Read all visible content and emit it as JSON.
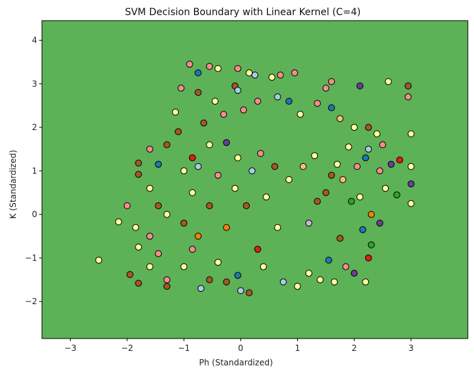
{
  "chart_data": {
    "type": "scatter",
    "title": "SVM Decision Boundary with Linear Kernel (C=4)",
    "xlabel": "Ph (Standardized)",
    "ylabel": "K (Standardized)",
    "xlim": [
      -3.5,
      4.0
    ],
    "ylim": [
      -2.85,
      4.45
    ],
    "xticks": [
      -3,
      -2,
      -1,
      0,
      1,
      2,
      3
    ],
    "yticks": [
      -2,
      -1,
      0,
      1,
      2,
      3,
      4
    ],
    "grid": false,
    "legend": "none",
    "background_region": {
      "label": "predicted class region",
      "color": "#5db156"
    },
    "colors": {
      "light_yellow": "#ffff99",
      "brown": "#a65628",
      "pink": "#f78c8c",
      "light_blue": "#a6cee3",
      "dark_blue": "#1f78b4",
      "orange": "#ff7f00",
      "red": "#e31a1c",
      "purple": "#6a3d9a",
      "lavender": "#cab2d6",
      "light_orange": "#fdbf6f",
      "green": "#33a02c"
    },
    "points": [
      [
        -2.5,
        -1.05,
        "light_yellow"
      ],
      [
        -2.15,
        -0.17,
        "light_yellow"
      ],
      [
        -2.0,
        0.2,
        "pink"
      ],
      [
        -1.95,
        -1.38,
        "brown"
      ],
      [
        -1.85,
        -0.3,
        "light_yellow"
      ],
      [
        -1.8,
        0.92,
        "brown"
      ],
      [
        -1.8,
        1.18,
        "brown"
      ],
      [
        -1.8,
        -1.58,
        "brown"
      ],
      [
        -1.8,
        -0.75,
        "light_yellow"
      ],
      [
        -1.6,
        1.5,
        "pink"
      ],
      [
        -1.6,
        0.6,
        "light_yellow"
      ],
      [
        -1.6,
        -0.5,
        "pink"
      ],
      [
        -1.6,
        -1.2,
        "light_yellow"
      ],
      [
        -1.45,
        1.15,
        "dark_blue"
      ],
      [
        -1.45,
        0.2,
        "brown"
      ],
      [
        -1.45,
        -0.9,
        "pink"
      ],
      [
        -1.3,
        1.6,
        "brown"
      ],
      [
        -1.3,
        0.0,
        "light_yellow"
      ],
      [
        -1.3,
        -1.5,
        "pink"
      ],
      [
        -1.3,
        -1.65,
        "brown"
      ],
      [
        -1.15,
        2.35,
        "light_yellow"
      ],
      [
        -1.1,
        1.9,
        "brown"
      ],
      [
        -1.05,
        2.9,
        "pink"
      ],
      [
        -1.0,
        1.0,
        "light_yellow"
      ],
      [
        -1.0,
        -0.2,
        "brown"
      ],
      [
        -1.0,
        -1.2,
        "light_yellow"
      ],
      [
        -0.9,
        3.45,
        "pink"
      ],
      [
        -0.85,
        1.3,
        "red"
      ],
      [
        -0.85,
        0.5,
        "light_yellow"
      ],
      [
        -0.85,
        -0.8,
        "pink"
      ],
      [
        -0.75,
        3.25,
        "dark_blue"
      ],
      [
        -0.75,
        2.8,
        "brown"
      ],
      [
        -0.75,
        1.1,
        "light_blue"
      ],
      [
        -0.75,
        -0.5,
        "orange"
      ],
      [
        -0.7,
        -1.7,
        "light_blue"
      ],
      [
        -0.65,
        2.1,
        "brown"
      ],
      [
        -0.55,
        3.4,
        "pink"
      ],
      [
        -0.55,
        1.6,
        "light_yellow"
      ],
      [
        -0.55,
        0.2,
        "brown"
      ],
      [
        -0.55,
        -1.5,
        "brown"
      ],
      [
        -0.45,
        2.6,
        "light_yellow"
      ],
      [
        -0.4,
        3.35,
        "light_yellow"
      ],
      [
        -0.4,
        0.9,
        "pink"
      ],
      [
        -0.4,
        -1.1,
        "light_yellow"
      ],
      [
        -0.3,
        2.3,
        "pink"
      ],
      [
        -0.25,
        1.65,
        "purple"
      ],
      [
        -0.25,
        -0.3,
        "orange"
      ],
      [
        -0.25,
        -1.55,
        "brown"
      ],
      [
        -0.1,
        2.95,
        "brown"
      ],
      [
        -0.1,
        0.6,
        "light_yellow"
      ],
      [
        -0.05,
        3.35,
        "pink"
      ],
      [
        -0.05,
        2.85,
        "light_blue"
      ],
      [
        -0.05,
        1.3,
        "light_yellow"
      ],
      [
        -0.05,
        -1.4,
        "dark_blue"
      ],
      [
        0.0,
        -1.75,
        "light_blue"
      ],
      [
        0.05,
        2.4,
        "pink"
      ],
      [
        0.1,
        0.2,
        "brown"
      ],
      [
        0.15,
        3.25,
        "light_yellow"
      ],
      [
        0.15,
        -1.8,
        "brown"
      ],
      [
        0.2,
        1.0,
        "light_blue"
      ],
      [
        0.25,
        3.2,
        "light_blue"
      ],
      [
        0.3,
        2.6,
        "pink"
      ],
      [
        0.3,
        -0.8,
        "red"
      ],
      [
        0.35,
        1.4,
        "pink"
      ],
      [
        0.4,
        -1.2,
        "light_yellow"
      ],
      [
        0.45,
        0.4,
        "light_yellow"
      ],
      [
        0.55,
        3.15,
        "light_yellow"
      ],
      [
        0.6,
        1.1,
        "brown"
      ],
      [
        0.65,
        2.7,
        "light_blue"
      ],
      [
        0.65,
        -0.3,
        "light_yellow"
      ],
      [
        0.7,
        3.2,
        "pink"
      ],
      [
        0.75,
        -1.55,
        "light_blue"
      ],
      [
        0.85,
        2.6,
        "dark_blue"
      ],
      [
        0.85,
        0.8,
        "light_yellow"
      ],
      [
        0.95,
        3.25,
        "pink"
      ],
      [
        1.0,
        -1.65,
        "light_yellow"
      ],
      [
        1.05,
        2.3,
        "light_yellow"
      ],
      [
        1.1,
        1.1,
        "light_orange"
      ],
      [
        1.2,
        -0.2,
        "lavender"
      ],
      [
        1.2,
        -1.35,
        "light_yellow"
      ],
      [
        1.3,
        1.35,
        "light_yellow"
      ],
      [
        1.35,
        2.55,
        "pink"
      ],
      [
        1.35,
        0.3,
        "brown"
      ],
      [
        1.4,
        -1.5,
        "light_yellow"
      ],
      [
        1.5,
        2.9,
        "pink"
      ],
      [
        1.5,
        0.5,
        "brown"
      ],
      [
        1.55,
        -1.05,
        "dark_blue"
      ],
      [
        1.6,
        3.05,
        "pink"
      ],
      [
        1.6,
        2.45,
        "dark_blue"
      ],
      [
        1.6,
        0.9,
        "brown"
      ],
      [
        1.65,
        -1.55,
        "light_yellow"
      ],
      [
        1.7,
        1.15,
        "light_yellow"
      ],
      [
        1.75,
        -0.55,
        "brown"
      ],
      [
        1.75,
        2.2,
        "light_orange"
      ],
      [
        1.8,
        0.8,
        "light_orange"
      ],
      [
        1.85,
        -1.2,
        "pink"
      ],
      [
        1.9,
        1.55,
        "light_yellow"
      ],
      [
        1.95,
        0.3,
        "green"
      ],
      [
        2.0,
        2.0,
        "light_yellow"
      ],
      [
        2.0,
        -1.35,
        "purple"
      ],
      [
        2.05,
        1.1,
        "pink"
      ],
      [
        2.1,
        2.95,
        "purple"
      ],
      [
        2.1,
        0.4,
        "light_yellow"
      ],
      [
        2.15,
        -0.35,
        "dark_blue"
      ],
      [
        2.2,
        1.3,
        "dark_blue"
      ],
      [
        2.2,
        -1.55,
        "light_yellow"
      ],
      [
        2.25,
        2.0,
        "brown"
      ],
      [
        2.25,
        1.5,
        "light_blue"
      ],
      [
        2.25,
        -1.0,
        "red"
      ],
      [
        2.3,
        -0.7,
        "green"
      ],
      [
        2.3,
        0.0,
        "orange"
      ],
      [
        2.4,
        1.85,
        "light_yellow"
      ],
      [
        2.45,
        1.0,
        "pink"
      ],
      [
        2.45,
        -0.2,
        "purple"
      ],
      [
        2.5,
        1.6,
        "pink"
      ],
      [
        2.55,
        0.6,
        "light_yellow"
      ],
      [
        2.6,
        3.05,
        "light_yellow"
      ],
      [
        2.65,
        1.15,
        "purple"
      ],
      [
        2.75,
        0.45,
        "green"
      ],
      [
        2.8,
        1.25,
        "red"
      ],
      [
        2.95,
        2.95,
        "brown"
      ],
      [
        2.95,
        2.7,
        "pink"
      ],
      [
        3.0,
        1.85,
        "light_yellow"
      ],
      [
        3.0,
        1.1,
        "light_yellow"
      ],
      [
        3.0,
        0.7,
        "purple"
      ],
      [
        3.0,
        0.25,
        "light_yellow"
      ]
    ]
  }
}
